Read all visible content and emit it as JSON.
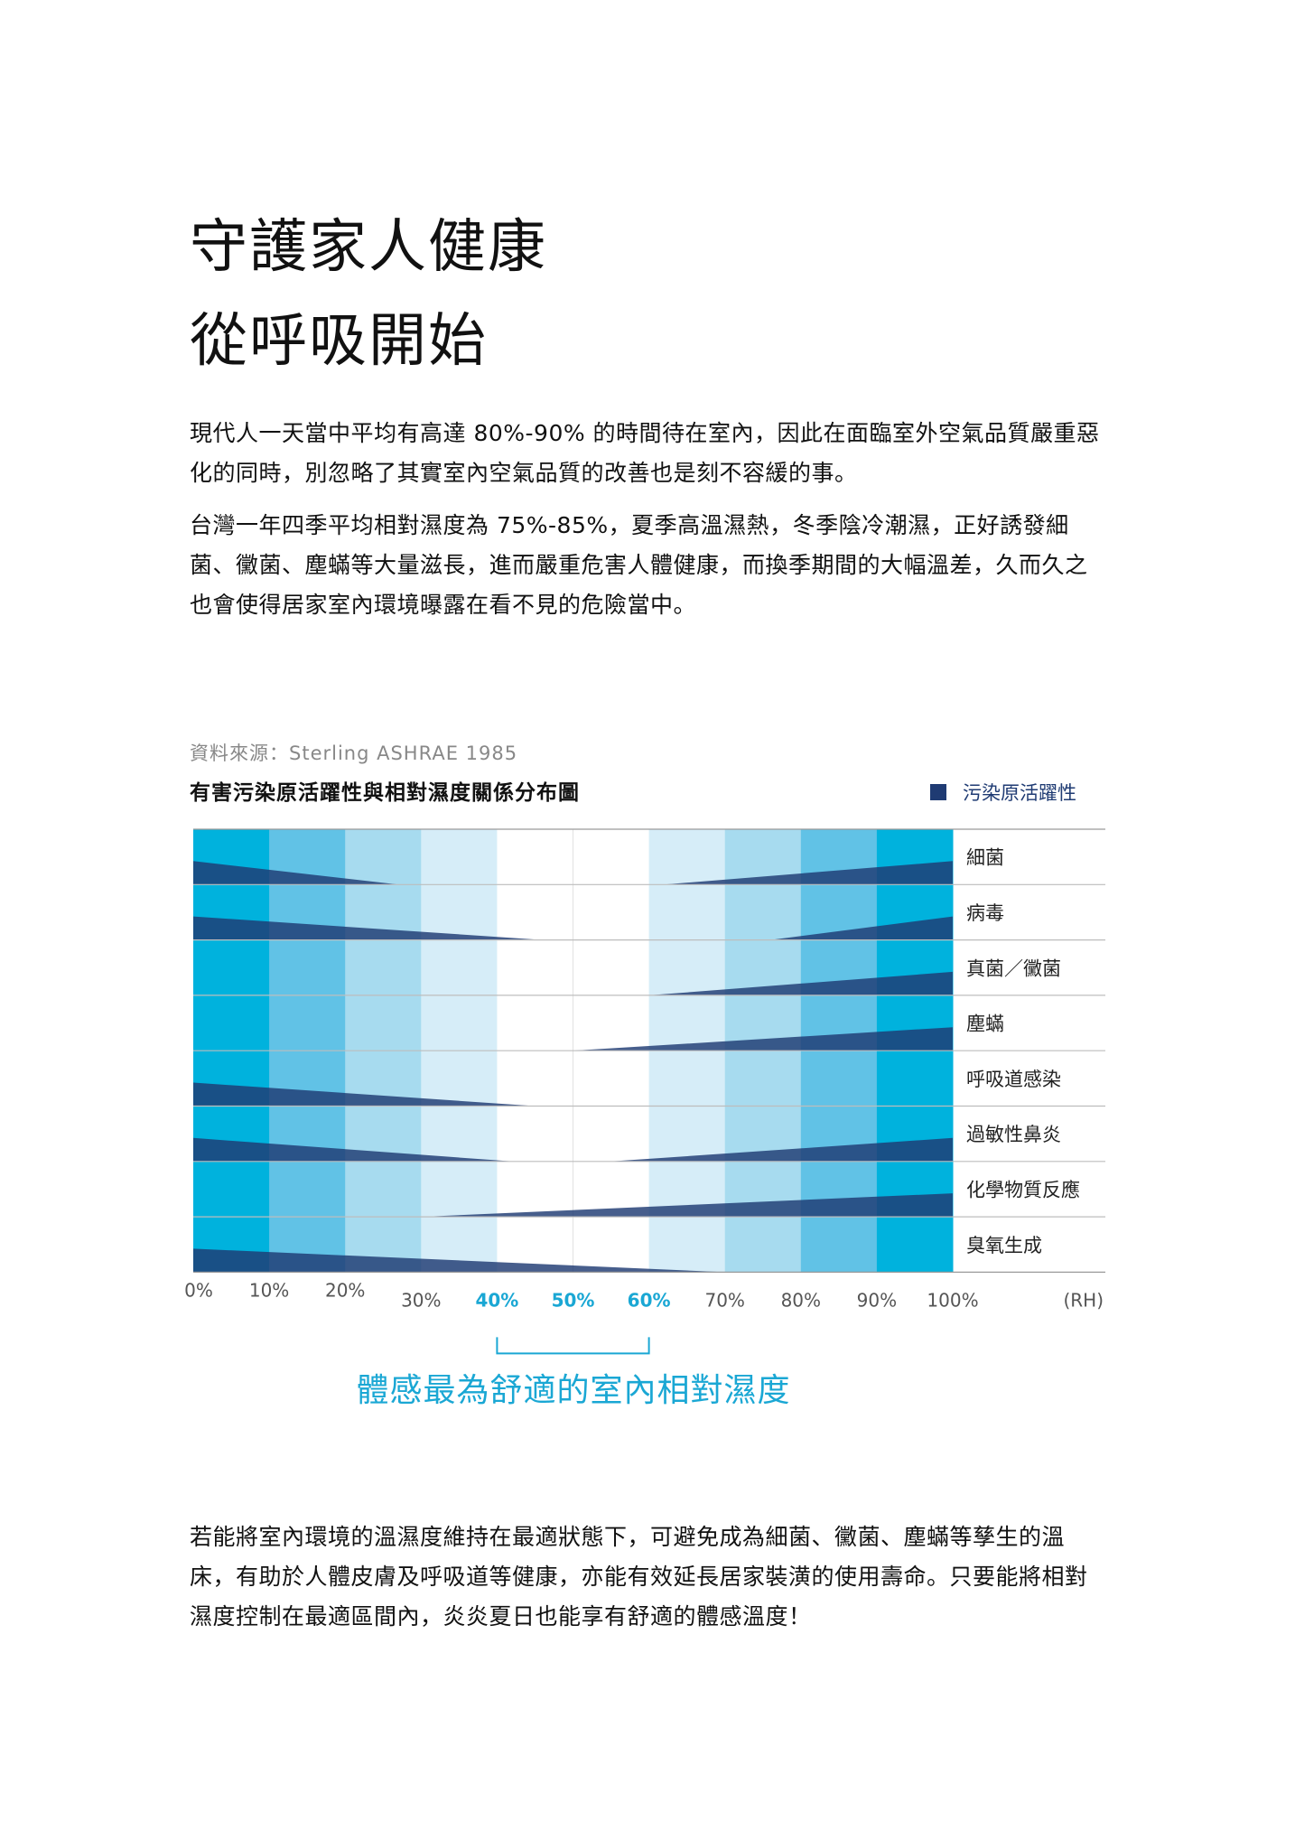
{
  "heading": {
    "line1": "守護家人健康",
    "line2": "從呼吸開始"
  },
  "paragraphs": {
    "p1": "現代人一天當中平均有高達 80%-90% 的時間待在室內，因此在面臨室外空氣品質嚴重惡化的同時，別忽略了其實室內空氣品質的改善也是刻不容緩的事。",
    "p2": "台灣一年四季平均相對濕度為 75%-85%，夏季高溫濕熱，冬季陰冷潮濕，正好誘發細菌、黴菌、塵蟎等大量滋長，進而嚴重危害人體健康，而換季期間的大幅溫差，久而久之也會使得居家室內環境曝露在看不見的危險當中。",
    "p3": "若能將室內環境的溫濕度維持在最適狀態下，可避免成為細菌、黴菌、塵蟎等孳生的溫床，有助於人體皮膚及呼吸道等健康，亦能有效延長居家裝潢的使用壽命。只要能將相對濕度控制在最適區間內，炎炎夏日也能享有舒適的體感溫度！"
  },
  "chart_data": {
    "type": "heatmap",
    "source": "資料來源：Sterling ASHRAE 1985",
    "title": "有害污染原活躍性與相對濕度關係分布圖",
    "legend": "污染原活躍性",
    "x_unit": "(RH)",
    "x_ticks": [
      "0%",
      "10%",
      "20%",
      "30%",
      "40%",
      "50%",
      "60%",
      "70%",
      "80%",
      "90%",
      "100%"
    ],
    "highlight_ticks": [
      "40%",
      "50%",
      "60%"
    ],
    "comfort_range": [
      40,
      60
    ],
    "comfort_label": "體感最為舒適的室內相對濕度",
    "shade_levels": [
      4,
      3,
      2,
      1,
      0,
      0,
      1,
      2,
      3,
      4
    ],
    "rows": [
      {
        "name": "細菌",
        "left": {
          "start": 100,
          "end": 27
        },
        "right": {
          "start": 62,
          "end": 100
        }
      },
      {
        "name": "病毒",
        "left": {
          "start": 100,
          "end": 46
        },
        "right": {
          "start": 76,
          "end": 100
        }
      },
      {
        "name": "真菌／黴菌",
        "left": null,
        "right": {
          "start": 60,
          "end": 100
        }
      },
      {
        "name": "塵蟎",
        "left": null,
        "right": {
          "start": 50,
          "end": 100
        }
      },
      {
        "name": "呼吸道感染",
        "left": {
          "start": 100,
          "end": 45
        },
        "right": null
      },
      {
        "name": "過敏性鼻炎",
        "left": {
          "start": 100,
          "end": 42
        },
        "right": {
          "start": 55,
          "end": 100
        }
      },
      {
        "name": "化學物質反應",
        "left": null,
        "right": {
          "start": 30,
          "end": 100
        }
      },
      {
        "name": "臭氧生成",
        "left": {
          "start": 100,
          "end": 70
        },
        "right": null
      }
    ],
    "colors": {
      "shade4": "#00b2dd",
      "shade3": "#61c2e6",
      "shade2": "#a7dbef",
      "shade1": "#d6edf8",
      "shade0": "#ffffff",
      "wedge": "#1f3b73",
      "highlight": "#1aa7d4"
    }
  }
}
